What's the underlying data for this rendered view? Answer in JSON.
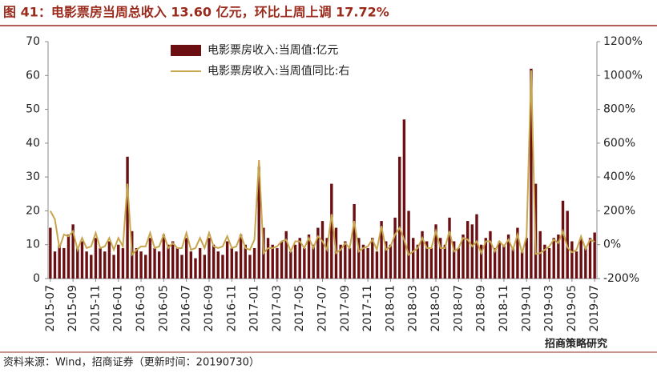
{
  "chart_data": {
    "type": "bar_line",
    "title": "图 41：电影票房当周总收入 13.60 亿元，环比上周上调 17.72%",
    "source": "资料来源：Wind，招商证券（更新时间：20190730）",
    "watermark": "招商策略研究",
    "categories": [
      "2015-07",
      null,
      null,
      null,
      null,
      "2015-09",
      null,
      null,
      null,
      null,
      "2015-11",
      null,
      null,
      null,
      null,
      "2016-01",
      null,
      null,
      null,
      null,
      "2016-03",
      null,
      null,
      null,
      null,
      "2016-05",
      null,
      null,
      null,
      null,
      "2016-07",
      null,
      null,
      null,
      null,
      "2016-09",
      null,
      null,
      null,
      null,
      "2016-11",
      null,
      null,
      null,
      null,
      "2017-01",
      null,
      null,
      null,
      null,
      "2017-03",
      null,
      null,
      null,
      null,
      "2017-05",
      null,
      null,
      null,
      null,
      "2017-07",
      null,
      null,
      null,
      null,
      "2017-09",
      null,
      null,
      null,
      null,
      "2017-11",
      null,
      null,
      null,
      null,
      "2018-01",
      null,
      null,
      null,
      null,
      "2018-03",
      null,
      null,
      null,
      null,
      "2018-05",
      null,
      null,
      null,
      null,
      "2018-07",
      null,
      null,
      null,
      null,
      "2018-09",
      null,
      null,
      null,
      null,
      "2018-11",
      null,
      null,
      null,
      null,
      "2019-01",
      null,
      null,
      null,
      null,
      "2019-03",
      null,
      null,
      null,
      null,
      "2019-05",
      null,
      null,
      null,
      null,
      "2019-07"
    ],
    "series": [
      {
        "name": "电影票房收入:当周值:亿元",
        "color": "#6b0f12",
        "type": "bar",
        "values": [
          15,
          8,
          10,
          9,
          13,
          16,
          9,
          11,
          8,
          7,
          12,
          9,
          8,
          11,
          7,
          10,
          9,
          36,
          14,
          9,
          8,
          7,
          12,
          9,
          8,
          13,
          10,
          11,
          9,
          7,
          12,
          8,
          6,
          9,
          7,
          12,
          10,
          8,
          7,
          11,
          9,
          8,
          13,
          10,
          7,
          9,
          33,
          15,
          12,
          10,
          9,
          11,
          14,
          8,
          10,
          12,
          9,
          13,
          10,
          15,
          17,
          12,
          28,
          15,
          10,
          11,
          9,
          22,
          12,
          10,
          9,
          12,
          8,
          17,
          11,
          10,
          18,
          36,
          47,
          20,
          12,
          10,
          14,
          11,
          9,
          16,
          12,
          10,
          18,
          11,
          9,
          13,
          17,
          16,
          19,
          10,
          12,
          14,
          9,
          11,
          10,
          13,
          9,
          15,
          8,
          12,
          62,
          28,
          14,
          10,
          9,
          12,
          13,
          23,
          20,
          11,
          8,
          12,
          9,
          12,
          13.6
        ]
      },
      {
        "name": "电影票房收入:当周值同比:右",
        "color": "#c8a64e",
        "type": "line",
        "axis": "y2",
        "values": [
          200,
          150,
          -20,
          60,
          50,
          80,
          -30,
          40,
          -20,
          -10,
          70,
          -20,
          -10,
          40,
          -30,
          40,
          -10,
          360,
          -60,
          -30,
          -10,
          -10,
          70,
          -20,
          -10,
          60,
          -20,
          10,
          -20,
          -20,
          70,
          -30,
          -20,
          40,
          -20,
          70,
          -10,
          -20,
          -10,
          50,
          -20,
          -10,
          60,
          -20,
          -30,
          30,
          500,
          -50,
          -20,
          -20,
          -10,
          20,
          30,
          -40,
          20,
          20,
          -20,
          40,
          -20,
          50,
          20,
          -30,
          180,
          -50,
          -30,
          10,
          -20,
          140,
          -40,
          -20,
          -10,
          30,
          -30,
          110,
          -30,
          -10,
          60,
          100,
          30,
          -60,
          -40,
          -20,
          40,
          -20,
          -20,
          80,
          -20,
          -20,
          80,
          -40,
          -20,
          40,
          30,
          -10,
          20,
          -50,
          20,
          20,
          -40,
          20,
          -10,
          30,
          -30,
          60,
          -50,
          50,
          1030,
          -55,
          -50,
          -30,
          -10,
          30,
          10,
          80,
          -15,
          -45,
          -30,
          50,
          -25,
          30,
          17.72
        ]
      }
    ],
    "ylim": [
      0,
      70
    ],
    "yticks": [
      0,
      10,
      20,
      30,
      40,
      50,
      60,
      70
    ],
    "y2lim": [
      -200,
      1200
    ],
    "y2ticks": [
      {
        "value": -200,
        "label": "-200%"
      },
      {
        "value": 0,
        "label": "0%"
      },
      {
        "value": 200,
        "label": "200%"
      },
      {
        "value": 400,
        "label": "400%"
      },
      {
        "value": 600,
        "label": "600%"
      },
      {
        "value": 800,
        "label": "800%"
      },
      {
        "value": 1000,
        "label": "1000%"
      },
      {
        "value": 1200,
        "label": "1200%"
      }
    ],
    "legend": "top"
  }
}
